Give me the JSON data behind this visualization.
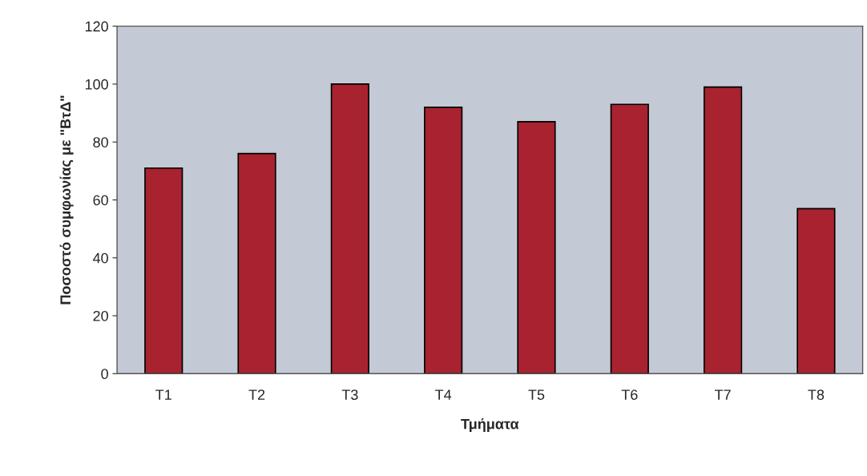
{
  "chart_data": {
    "type": "bar",
    "xlabel": "Τμήματα",
    "ylabel": "Ποσοστό συμφωνίας με \"ΒτΔ\"",
    "categories": [
      "T1",
      "T2",
      "T3",
      "T4",
      "T5",
      "T6",
      "T7",
      "T8"
    ],
    "values": [
      71,
      76,
      100,
      92,
      87,
      93,
      99,
      57
    ],
    "color": "#a8232f",
    "ylim": [
      0,
      120
    ],
    "yticks": [
      0,
      20,
      40,
      60,
      80,
      100,
      120
    ],
    "grid": false,
    "legend": false
  }
}
